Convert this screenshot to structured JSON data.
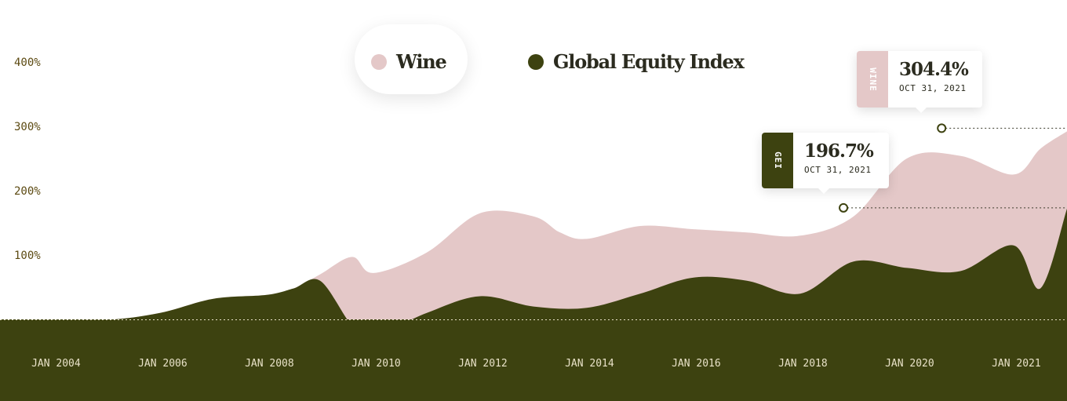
{
  "colors": {
    "wine": "#e4c8c8",
    "gei": "#3d4210",
    "overlap": "#dfe2d0",
    "axis_text": "#5c4a12",
    "x_text": "#e9e2c8"
  },
  "legend": [
    {
      "label": "Wine",
      "color": "#e4c8c8"
    },
    {
      "label": "Global Equity Index",
      "color": "#3d4210"
    }
  ],
  "tooltips": {
    "wine": {
      "tag": "WINE",
      "value": "304.4%",
      "date": "OCT 31, 2021"
    },
    "gei": {
      "tag": "GEI",
      "value": "196.7%",
      "date": "OCT 31, 2021"
    }
  },
  "chart_data": {
    "type": "area",
    "x_axis": {
      "tick_labels": [
        "JAN 2004",
        "JAN 2006",
        "JAN 2008",
        "JAN 2010",
        "JAN 2012",
        "JAN 2014",
        "JAN 2016",
        "JAN 2018",
        "JAN 2020",
        "JAN 2021"
      ]
    },
    "y_axis": {
      "tick_labels": [
        "400%",
        "300%",
        "200%",
        "100%"
      ],
      "ylim": [
        -2,
        412
      ]
    },
    "grid": false,
    "legend_position": "top-center",
    "series": [
      {
        "name": "Wine",
        "x": [
          2003,
          2004,
          2005,
          2006,
          2007,
          2008,
          2008.5,
          2009,
          2009.6,
          2010,
          2011,
          2012,
          2013,
          2013.5,
          2014,
          2015,
          2016,
          2017,
          2018,
          2019,
          2020,
          2021,
          2022,
          2022.5,
          2023
        ],
        "y": [
          0,
          0,
          -1,
          10,
          32,
          38,
          48,
          70,
          97,
          72,
          104,
          165,
          160,
          135,
          125,
          145,
          140,
          135,
          130,
          160,
          250,
          254,
          225,
          265,
          292
        ]
      },
      {
        "name": "Global Equity Index",
        "x": [
          2003,
          2004,
          2005,
          2006,
          2007,
          2008,
          2008.5,
          2009,
          2009.6,
          2010,
          2011,
          2012,
          2013,
          2014,
          2015,
          2016,
          2017,
          2018,
          2019,
          2020,
          2021,
          2022,
          2022.5,
          2023
        ],
        "y": [
          0,
          0,
          -1,
          10,
          32,
          38,
          48,
          60,
          -10,
          -26,
          10,
          36,
          20,
          18,
          40,
          65,
          60,
          40,
          90,
          80,
          75,
          115,
          48,
          172
        ]
      }
    ]
  }
}
